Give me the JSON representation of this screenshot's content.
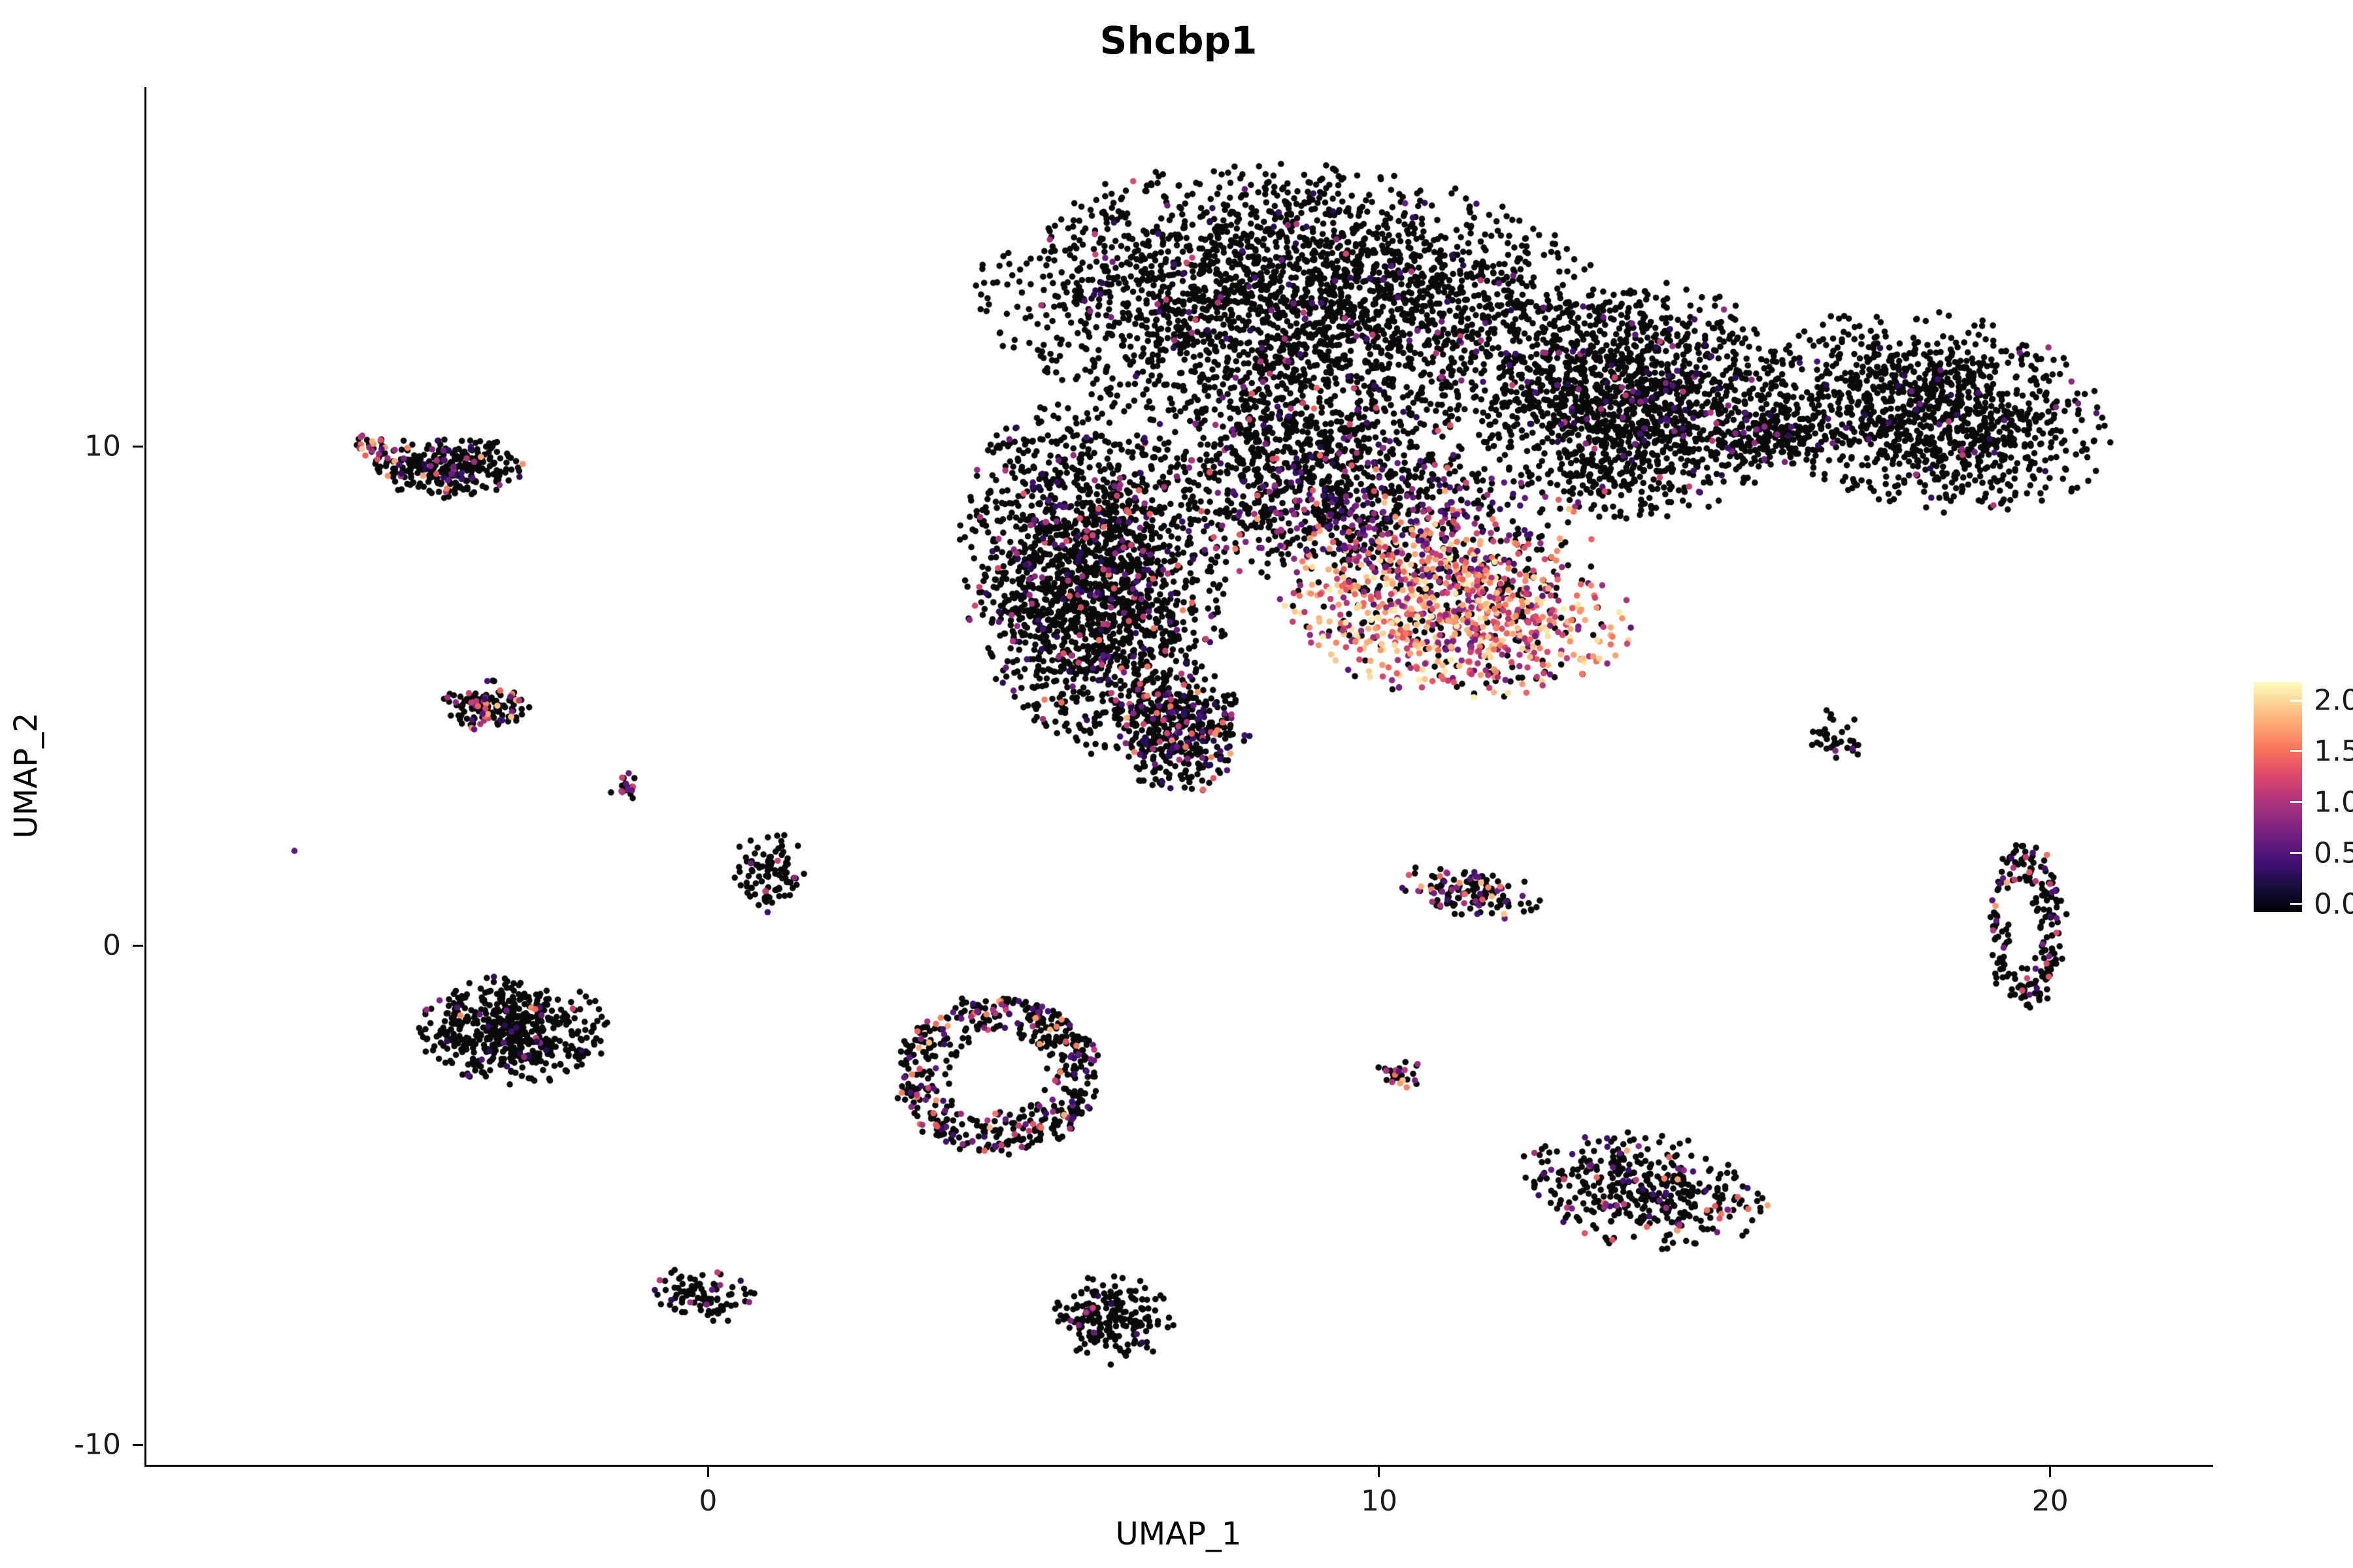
{
  "chart_data": {
    "type": "scatter",
    "title": "Shcbp1",
    "xlabel": "UMAP_1",
    "ylabel": "UMAP_2",
    "x_axis": {
      "range": [
        -8.4,
        22.4
      ],
      "ticks": [
        {
          "value": 0,
          "label": "0"
        },
        {
          "value": 10,
          "label": "10"
        },
        {
          "value": 20,
          "label": "20"
        }
      ]
    },
    "y_axis": {
      "range": [
        -10.4,
        17.2
      ],
      "ticks": [
        {
          "value": 10,
          "label": "10"
        },
        {
          "value": 0,
          "label": "0"
        },
        {
          "value": -10,
          "label": "-10"
        }
      ]
    },
    "grid": false,
    "legend": {
      "position": "right",
      "domain": [
        -0.08,
        2.18
      ],
      "ticks": [
        {
          "value": 2.0,
          "label": "2.0"
        },
        {
          "value": 1.5,
          "label": "1.5"
        },
        {
          "value": 1.0,
          "label": "1.0"
        },
        {
          "value": 0.5,
          "label": "0.5"
        },
        {
          "value": 0.0,
          "label": "0.0"
        }
      ]
    },
    "colormap": {
      "name": "magma",
      "stops": [
        "#000004",
        "#140e36",
        "#3b0f70",
        "#641a80",
        "#8c2981",
        "#b73779",
        "#de4968",
        "#f7705c",
        "#fe9f6d",
        "#fecf92",
        "#fcfdbf"
      ],
      "zero_color": "#0a0a0a",
      "value_max": 2.15
    },
    "point_radius_px": 4.8,
    "clusters": [
      {
        "name": "main-dome",
        "n": 2600,
        "cx": 8.7,
        "cy": 12.9,
        "rx": 4.1,
        "ry": 2.4,
        "rot": -5,
        "expr_frac": 0.05,
        "v": [
          0.3,
          1.3
        ]
      },
      {
        "name": "main-left-arm",
        "n": 1900,
        "cx": 5.7,
        "cy": 7.3,
        "rx": 1.7,
        "ry": 3.1,
        "rot": 8,
        "expr_frac": 0.1,
        "v": [
          0.3,
          1.6
        ]
      },
      {
        "name": "main-mid",
        "n": 800,
        "cx": 8.8,
        "cy": 9.6,
        "rx": 2.3,
        "ry": 1.7,
        "rot": 0,
        "expr_frac": 0.12,
        "v": [
          0.3,
          1.6
        ]
      },
      {
        "name": "main-hotspot",
        "n": 950,
        "cx": 11.1,
        "cy": 6.7,
        "rx": 2.3,
        "ry": 1.5,
        "rot": -8,
        "expr_frac": 0.78,
        "v": [
          0.5,
          2.1
        ],
        "bias": 0.7
      },
      {
        "name": "hotspot-fringe",
        "n": 450,
        "cx": 10.2,
        "cy": 8.4,
        "rx": 2.6,
        "ry": 1.3,
        "rot": 0,
        "expr_frac": 0.45,
        "v": [
          0.4,
          1.9
        ]
      },
      {
        "name": "main-right-mass",
        "n": 1500,
        "cx": 13.8,
        "cy": 10.9,
        "rx": 2.1,
        "ry": 2.1,
        "rot": 0,
        "expr_frac": 0.06,
        "v": [
          0.3,
          1.3
        ]
      },
      {
        "name": "main-right-wing",
        "n": 1150,
        "cx": 18.2,
        "cy": 10.7,
        "rx": 2.4,
        "ry": 1.7,
        "rot": -18,
        "expr_frac": 0.04,
        "v": [
          0.3,
          1.2
        ]
      },
      {
        "name": "main-bridge",
        "n": 160,
        "cx": 15.9,
        "cy": 10.2,
        "rx": 0.9,
        "ry": 0.55,
        "rot": 0,
        "expr_frac": 0.05,
        "v": [
          0.3,
          1.0
        ]
      },
      {
        "name": "south-lobe",
        "n": 380,
        "cx": 7.0,
        "cy": 4.3,
        "rx": 0.9,
        "ry": 1.1,
        "rot": 0,
        "expr_frac": 0.22,
        "v": [
          0.3,
          1.8
        ]
      },
      {
        "name": "topleft-cluster",
        "n": 270,
        "cx": -3.9,
        "cy": 9.6,
        "rx": 1.0,
        "ry": 0.55,
        "rot": 0,
        "expr_frac": 0.15,
        "v": [
          0.3,
          1.8
        ]
      },
      {
        "name": "topleft-tip",
        "n": 30,
        "cx": -5.0,
        "cy": 10.0,
        "rx": 0.3,
        "ry": 0.25,
        "rot": 0,
        "expr_frac": 0.5,
        "v": [
          0.5,
          2.0
        ],
        "bias": 1.0
      },
      {
        "name": "left-small",
        "n": 120,
        "cx": -3.3,
        "cy": 4.8,
        "rx": 0.6,
        "ry": 0.5,
        "rot": 0,
        "expr_frac": 0.2,
        "v": [
          0.4,
          1.9
        ]
      },
      {
        "name": "tiny-left",
        "n": 20,
        "cx": -1.25,
        "cy": 3.2,
        "rx": 0.22,
        "ry": 0.3,
        "rot": 0,
        "expr_frac": 0.5,
        "v": [
          0.4,
          1.7
        ],
        "bias": 1.0
      },
      {
        "name": "lone-dot",
        "n": 1,
        "cx": -6.2,
        "cy": 1.9,
        "rx": 0.02,
        "ry": 0.02,
        "rot": 0,
        "expr_frac": 1.0,
        "v": [
          0.6,
          0.7
        ]
      },
      {
        "name": "upper-small",
        "n": 95,
        "cx": 0.9,
        "cy": 1.5,
        "rx": 0.5,
        "ry": 0.75,
        "rot": 0,
        "expr_frac": 0.12,
        "v": [
          0.4,
          1.6
        ]
      },
      {
        "name": "left-dense",
        "n": 560,
        "cx": -2.9,
        "cy": -1.7,
        "rx": 1.25,
        "ry": 0.95,
        "rot": 0,
        "expr_frac": 0.07,
        "v": [
          0.3,
          1.7
        ]
      },
      {
        "name": "center-ring",
        "n": 520,
        "cx": 4.3,
        "cy": -2.6,
        "rx": 1.5,
        "ry": 1.55,
        "rot": 0,
        "shape": "ring",
        "inner": 0.45,
        "expr_frac": 0.22,
        "v": [
          0.4,
          1.9
        ]
      },
      {
        "name": "lowerleft-small",
        "n": 95,
        "cx": -0.1,
        "cy": -7.0,
        "rx": 0.7,
        "ry": 0.45,
        "rot": -15,
        "expr_frac": 0.12,
        "v": [
          0.3,
          1.2
        ]
      },
      {
        "name": "bottom-mid",
        "n": 210,
        "cx": 6.0,
        "cy": -7.5,
        "rx": 0.8,
        "ry": 0.8,
        "rot": 0,
        "expr_frac": 0.06,
        "v": [
          0.3,
          1.5
        ]
      },
      {
        "name": "midright-streaklet",
        "n": 140,
        "cx": 11.3,
        "cy": 1.1,
        "rx": 1.0,
        "ry": 0.45,
        "rot": -12,
        "expr_frac": 0.3,
        "v": [
          0.4,
          1.9
        ]
      },
      {
        "name": "tiny-mid",
        "n": 26,
        "cx": 10.3,
        "cy": -2.6,
        "rx": 0.3,
        "ry": 0.35,
        "rot": 40,
        "expr_frac": 0.5,
        "v": [
          0.5,
          2.0
        ],
        "bias": 1.0
      },
      {
        "name": "right-blob",
        "n": 400,
        "cx": 13.9,
        "cy": -4.9,
        "rx": 1.7,
        "ry": 1.0,
        "rot": -12,
        "expr_frac": 0.18,
        "v": [
          0.4,
          1.8
        ]
      },
      {
        "name": "ne-streak",
        "n": 35,
        "cx": 16.8,
        "cy": 4.2,
        "rx": 0.4,
        "ry": 0.5,
        "rot": 40,
        "expr_frac": 0.15,
        "v": [
          0.5,
          1.8
        ]
      },
      {
        "name": "right-ring",
        "n": 210,
        "cx": 19.6,
        "cy": 0.4,
        "rx": 0.55,
        "ry": 1.65,
        "rot": 0,
        "shape": "ring",
        "inner": 0.35,
        "expr_frac": 0.18,
        "v": [
          0.4,
          1.9
        ]
      }
    ]
  }
}
